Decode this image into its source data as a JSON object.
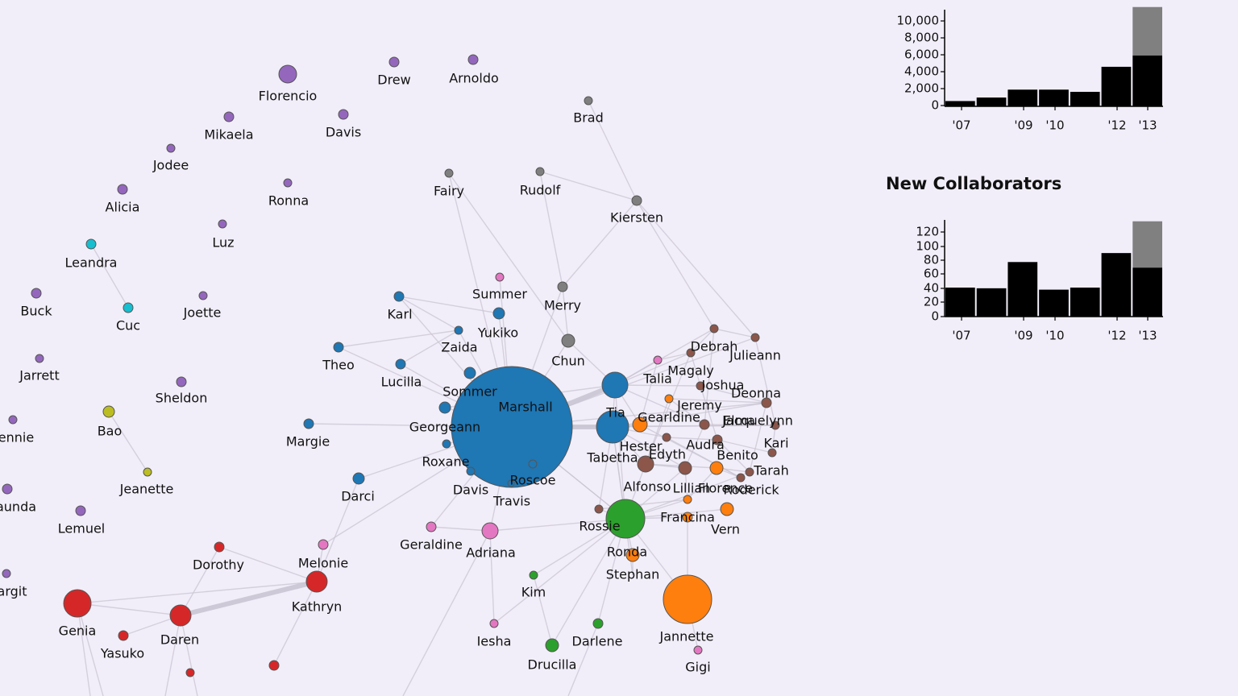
{
  "colors": {
    "background": "#f2eef9",
    "purple": "#9467bd",
    "cyan": "#17becf",
    "olive": "#bcbd22",
    "gray": "#7f7f7f",
    "blue": "#1f77b4",
    "brown": "#8c564b",
    "orange": "#ff7f0e",
    "green": "#2ca02c",
    "pink": "#e377c2",
    "red": "#d62728",
    "bar": "#000000",
    "bar_partial": "#808080",
    "edge": "#c9c4d1"
  },
  "network": {
    "nodes": [
      {
        "name": "Florencio",
        "group": "purple"
      },
      {
        "name": "Drew",
        "group": "purple"
      },
      {
        "name": "Arnoldo",
        "group": "purple"
      },
      {
        "name": "Mikaela",
        "group": "purple"
      },
      {
        "name": "Davis",
        "group": "purple"
      },
      {
        "name": "Jodee",
        "group": "purple"
      },
      {
        "name": "Alicia",
        "group": "purple"
      },
      {
        "name": "Ronna",
        "group": "purple"
      },
      {
        "name": "Luz",
        "group": "purple"
      },
      {
        "name": "Leandra",
        "group": "cyan"
      },
      {
        "name": "Buck",
        "group": "purple"
      },
      {
        "name": "Cuc",
        "group": "cyan"
      },
      {
        "name": "Joette",
        "group": "purple"
      },
      {
        "name": "Jarrett",
        "group": "purple"
      },
      {
        "name": "Sheldon",
        "group": "purple"
      },
      {
        "name": "ennie",
        "group": "purple"
      },
      {
        "name": "Bao",
        "group": "olive"
      },
      {
        "name": "Jeanette",
        "group": "olive"
      },
      {
        "name": "aunda",
        "group": "purple"
      },
      {
        "name": "Lemuel",
        "group": "purple"
      },
      {
        "name": "argit",
        "group": "purple"
      },
      {
        "name": "Brad",
        "group": "gray"
      },
      {
        "name": "Fairy",
        "group": "gray"
      },
      {
        "name": "Rudolf",
        "group": "gray"
      },
      {
        "name": "Kiersten",
        "group": "gray"
      },
      {
        "name": "Merry",
        "group": "gray"
      },
      {
        "name": "Chun",
        "group": "gray"
      },
      {
        "name": "Summer",
        "group": "pink"
      },
      {
        "name": "Karl",
        "group": "blue"
      },
      {
        "name": "Yukiko",
        "group": "blue"
      },
      {
        "name": "Zaida",
        "group": "blue"
      },
      {
        "name": "Theo",
        "group": "blue"
      },
      {
        "name": "Lucilla",
        "group": "blue"
      },
      {
        "name": "Sommer",
        "group": "blue"
      },
      {
        "name": "Marshall",
        "group": "blue"
      },
      {
        "name": "Georgeann",
        "group": "blue"
      },
      {
        "name": "Margie",
        "group": "blue"
      },
      {
        "name": "Roxane",
        "group": "blue"
      },
      {
        "name": "Davis",
        "group": "blue"
      },
      {
        "name": "Darci",
        "group": "blue"
      },
      {
        "name": "Roscoe",
        "group": "blue"
      },
      {
        "name": "Travis",
        "group": "blue"
      },
      {
        "name": "Tia",
        "group": "blue"
      },
      {
        "name": "Tabetha",
        "group": "blue"
      },
      {
        "name": "Talia",
        "group": "pink"
      },
      {
        "name": "Debrah",
        "group": "brown"
      },
      {
        "name": "Julieann",
        "group": "brown"
      },
      {
        "name": "Magaly",
        "group": "brown"
      },
      {
        "name": "Joshua",
        "group": "brown"
      },
      {
        "name": "Deonna",
        "group": "brown"
      },
      {
        "name": "Jeremy",
        "group": "orange"
      },
      {
        "name": "Gearldine",
        "group": "orange"
      },
      {
        "name": "Elma",
        "group": "brown"
      },
      {
        "name": "Jacquelynn",
        "group": "brown"
      },
      {
        "name": "Kari",
        "group": "brown"
      },
      {
        "name": "Hester",
        "group": "brown"
      },
      {
        "name": "Audra",
        "group": "brown"
      },
      {
        "name": "Edyth",
        "group": "brown"
      },
      {
        "name": "Benito",
        "group": "brown"
      },
      {
        "name": "Tarah",
        "group": "brown"
      },
      {
        "name": "Alfonso",
        "group": "brown"
      },
      {
        "name": "Lillian",
        "group": "orange"
      },
      {
        "name": "Florence",
        "group": "orange"
      },
      {
        "name": "Roderick",
        "group": "brown"
      },
      {
        "name": "Francina",
        "group": "orange"
      },
      {
        "name": "Vern",
        "group": "orange"
      },
      {
        "name": "Rossie",
        "group": "green"
      },
      {
        "name": "Ronda",
        "group": "orange"
      },
      {
        "name": "Stephan",
        "group": "orange"
      },
      {
        "name": "Jannette",
        "group": "orange"
      },
      {
        "name": "Gigi",
        "group": "pink"
      },
      {
        "name": "Geraldine",
        "group": "pink"
      },
      {
        "name": "Adriana",
        "group": "pink"
      },
      {
        "name": "Kim",
        "group": "green"
      },
      {
        "name": "Iesha",
        "group": "pink"
      },
      {
        "name": "Darlene",
        "group": "green"
      },
      {
        "name": "Drucilla",
        "group": "green"
      },
      {
        "name": "Melonie",
        "group": "pink"
      },
      {
        "name": "Dorothy",
        "group": "red"
      },
      {
        "name": "Kathryn",
        "group": "red"
      },
      {
        "name": "Genia",
        "group": "red"
      },
      {
        "name": "Daren",
        "group": "red"
      },
      {
        "name": "Yasuko",
        "group": "red"
      }
    ]
  },
  "charts": [
    {
      "title": "",
      "tick_labels": [
        "'07",
        "'09",
        "'10",
        "'12",
        "'13"
      ],
      "y_ticks": [
        "10,000",
        "8,000",
        "6,000",
        "4,000",
        "2,000",
        "0"
      ]
    },
    {
      "title": "New Collaborators",
      "tick_labels": [
        "'07",
        "'09",
        "'10",
        "'12",
        "'13"
      ],
      "y_ticks": [
        "120",
        "100",
        "80",
        "60",
        "40",
        "20",
        "0"
      ]
    }
  ],
  "chart_data": [
    {
      "type": "bar",
      "title": "",
      "x": [
        2007,
        2008,
        2009,
        2010,
        2011,
        2012,
        2013
      ],
      "series": [
        {
          "values": [
            600,
            1000,
            1900,
            1900,
            1650,
            4500,
            5800
          ]
        },
        {
          "values": [
            0,
            0,
            0,
            0,
            0,
            0,
            5500
          ]
        }
      ],
      "ylim": [
        0,
        11000
      ],
      "xlabel": "",
      "ylabel": ""
    },
    {
      "type": "bar",
      "title": "New Collaborators",
      "x": [
        2007,
        2008,
        2009,
        2010,
        2011,
        2012,
        2013
      ],
      "series": [
        {
          "values": [
            42,
            41,
            79,
            39,
            42,
            92,
            71
          ]
        },
        {
          "values": [
            0,
            0,
            0,
            0,
            0,
            0,
            67
          ]
        }
      ],
      "ylim": [
        0,
        140
      ],
      "xlabel": "",
      "ylabel": ""
    }
  ]
}
